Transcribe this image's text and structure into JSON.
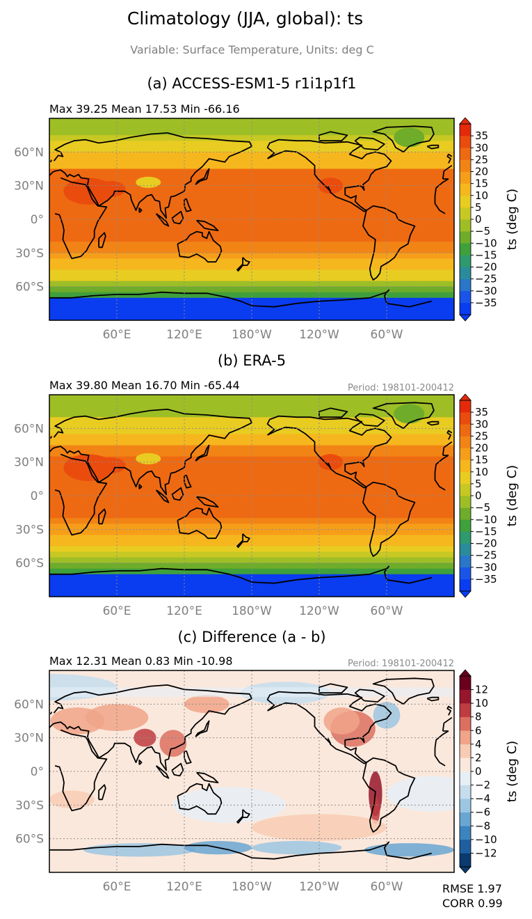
{
  "title": "Climatology (JJA, global): ts",
  "subtitle": "Variable: Surface Temperature, Units: deg C",
  "colors": {
    "land_outline": "#000000",
    "grid": "#8c8c8c",
    "tick_label": "#7f7f7f"
  },
  "chart_data": [
    {
      "type": "heatmap",
      "title": "(a) ACCESS-ESM1-5 r1i1p1f1",
      "stats": "Max 39.25 Mean 17.53 Min -66.16",
      "period": "",
      "x_ticks": [
        "60°E",
        "120°E",
        "180°W",
        "120°W",
        "60°W"
      ],
      "y_ticks": [
        "60°N",
        "30°N",
        "0°",
        "30°S",
        "60°S"
      ],
      "colorbar_label": "ts (deg C)",
      "colorbar_ticks": [
        "35",
        "30",
        "25",
        "20",
        "15",
        "10",
        "5",
        "0",
        "−5",
        "−10",
        "−15",
        "−20",
        "−25",
        "−30",
        "−35"
      ],
      "colorbar_range": [
        -40,
        40
      ],
      "stats_values": {
        "max": 39.25,
        "mean": 17.53,
        "min": -66.16
      }
    },
    {
      "type": "heatmap",
      "title": "(b) ERA-5",
      "stats": "Max 39.80 Mean 16.70 Min -65.44",
      "period": "Period: 198101-200412",
      "x_ticks": [
        "60°E",
        "120°E",
        "180°W",
        "120°W",
        "60°W"
      ],
      "y_ticks": [
        "60°N",
        "30°N",
        "0°",
        "30°S",
        "60°S"
      ],
      "colorbar_label": "ts (deg C)",
      "colorbar_ticks": [
        "35",
        "30",
        "25",
        "20",
        "15",
        "10",
        "5",
        "0",
        "−5",
        "−10",
        "−15",
        "−20",
        "−25",
        "−30",
        "−35"
      ],
      "colorbar_range": [
        -40,
        40
      ],
      "stats_values": {
        "max": 39.8,
        "mean": 16.7,
        "min": -65.44
      }
    },
    {
      "type": "heatmap",
      "title": "(c) Difference (a - b)",
      "stats": "Max 12.31 Mean 0.83 Min -10.98",
      "period": "Period: 198101-200412",
      "x_ticks": [
        "60°E",
        "120°E",
        "180°W",
        "120°W",
        "60°W"
      ],
      "y_ticks": [
        "60°N",
        "30°N",
        "0°",
        "30°S",
        "60°S"
      ],
      "colorbar_label": "ts (deg C)",
      "colorbar_ticks": [
        "12",
        "10",
        "8",
        "6",
        "4",
        "2",
        "0",
        "−2",
        "−4",
        "−6",
        "−8",
        "−10",
        "−12"
      ],
      "colorbar_range": [
        -14,
        14
      ],
      "stats_values": {
        "max": 12.31,
        "mean": 0.83,
        "min": -10.98
      }
    }
  ],
  "rmse_label": "RMSE 1.97",
  "corr_label": "CORR 0.99"
}
